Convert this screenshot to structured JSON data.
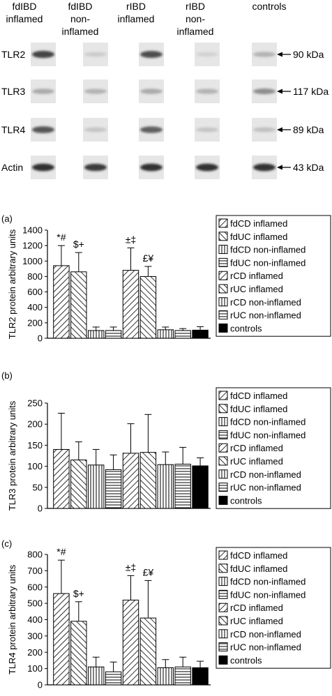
{
  "blot": {
    "headers": [
      [
        "fdIBD",
        "inflamed"
      ],
      [
        "fdIBD",
        "non-",
        "inflamed"
      ],
      [
        "rIBD",
        "inflamed"
      ],
      [
        "rIBD",
        "non-",
        "inflamed"
      ],
      [
        "controls"
      ]
    ],
    "rows": [
      {
        "label": "TLR2",
        "size": "90 kDa",
        "intensity": [
          0.85,
          0.12,
          0.8,
          0.08,
          0.25
        ]
      },
      {
        "label": "TLR3",
        "size": "117 kDa",
        "intensity": [
          0.3,
          0.25,
          0.3,
          0.25,
          0.45
        ]
      },
      {
        "label": "TLR4",
        "size": "89 kDa",
        "intensity": [
          0.75,
          0.15,
          0.7,
          0.15,
          0.18
        ]
      },
      {
        "label": "Actin",
        "size": "43 kDa",
        "intensity": [
          0.95,
          0.9,
          0.95,
          0.95,
          0.95
        ]
      }
    ]
  },
  "legend": [
    "fdCD inflamed",
    "fdUC inflamed",
    "fdCD non-inflamed",
    "fdUC non-inflamed",
    "rCD inflamed",
    "rUC inflamed",
    "rCD non-inflamed",
    "rUC non-inflamed",
    "controls"
  ],
  "chart_data": [
    {
      "type": "bar",
      "panel": "(a)",
      "ylabel": "TLR2 protein arbitrary units",
      "ylim": [
        0,
        1400
      ],
      "yticks": [
        0,
        200,
        400,
        600,
        800,
        1000,
        1200,
        1400
      ],
      "categories": [
        "fdCD inflamed",
        "fdUC inflamed",
        "fdCD non-inflamed",
        "fdUC non-inflamed",
        "rCD inflamed",
        "rUC inflamed",
        "rCD non-inflamed",
        "rUC non-inflamed",
        "controls"
      ],
      "values": [
        940,
        860,
        100,
        100,
        880,
        800,
        110,
        100,
        105
      ],
      "errors": [
        260,
        250,
        45,
        45,
        290,
        130,
        35,
        25,
        45
      ],
      "annotations": [
        "*#",
        "$+",
        "",
        "",
        "±‡",
        "£¥",
        "",
        "",
        ""
      ]
    },
    {
      "type": "bar",
      "panel": "(b)",
      "ylabel": "TLR3 protein arbitrary units",
      "ylim": [
        0,
        250
      ],
      "yticks": [
        0,
        50,
        100,
        150,
        200,
        250
      ],
      "categories": [
        "fdCD inflamed",
        "fdUC inflamed",
        "fdCD non-inflamed",
        "fdUC non-inflamed",
        "rCD inflamed",
        "rUC inflamed",
        "rCD non-inflamed",
        "rUC non-inflamed",
        "controls"
      ],
      "values": [
        140,
        115,
        103,
        92,
        131,
        133,
        104,
        105,
        101
      ],
      "errors": [
        86,
        43,
        37,
        35,
        70,
        90,
        30,
        40,
        19
      ],
      "annotations": [
        "",
        "",
        "",
        "",
        "",
        "",
        "",
        "",
        ""
      ]
    },
    {
      "type": "bar",
      "panel": "(c)",
      "ylabel": "TLR4 protein arbitrary units",
      "ylim": [
        0,
        800
      ],
      "yticks": [
        0,
        100,
        200,
        300,
        400,
        500,
        600,
        700,
        800
      ],
      "categories": [
        "fdCD inflamed",
        "fdUC inflamed",
        "fdCD non-inflamed",
        "fdUC non-inflamed",
        "rCD inflamed",
        "rUC inflamed",
        "rCD non-inflamed",
        "rUC non-inflamed",
        "controls"
      ],
      "values": [
        560,
        390,
        110,
        80,
        520,
        410,
        105,
        110,
        105
      ],
      "errors": [
        205,
        120,
        60,
        60,
        150,
        230,
        50,
        60,
        40
      ],
      "annotations": [
        "*#",
        "$+",
        "",
        "",
        "±‡",
        "£¥",
        "",
        "",
        ""
      ]
    }
  ]
}
